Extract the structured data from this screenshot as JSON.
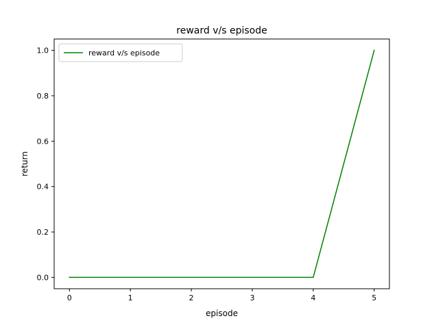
{
  "chart_data": {
    "type": "line",
    "title": "reward v/s episode",
    "xlabel": "episode",
    "ylabel": "return",
    "xlim": [
      -0.25,
      5.25
    ],
    "ylim": [
      -0.05,
      1.05
    ],
    "xticks": [
      0,
      1,
      2,
      3,
      4,
      5
    ],
    "yticks": [
      0.0,
      0.2,
      0.4,
      0.6,
      0.8,
      1.0
    ],
    "xtick_labels": [
      "0",
      "1",
      "2",
      "3",
      "4",
      "5"
    ],
    "ytick_labels": [
      "0.0",
      "0.2",
      "0.4",
      "0.6",
      "0.8",
      "1.0"
    ],
    "grid": false,
    "legend_position": "top-left",
    "series": [
      {
        "name": "reward v/s episode",
        "color": "#008000",
        "x": [
          0,
          1,
          2,
          3,
          4,
          5
        ],
        "y": [
          0,
          0,
          0,
          0,
          0,
          1
        ]
      }
    ]
  }
}
